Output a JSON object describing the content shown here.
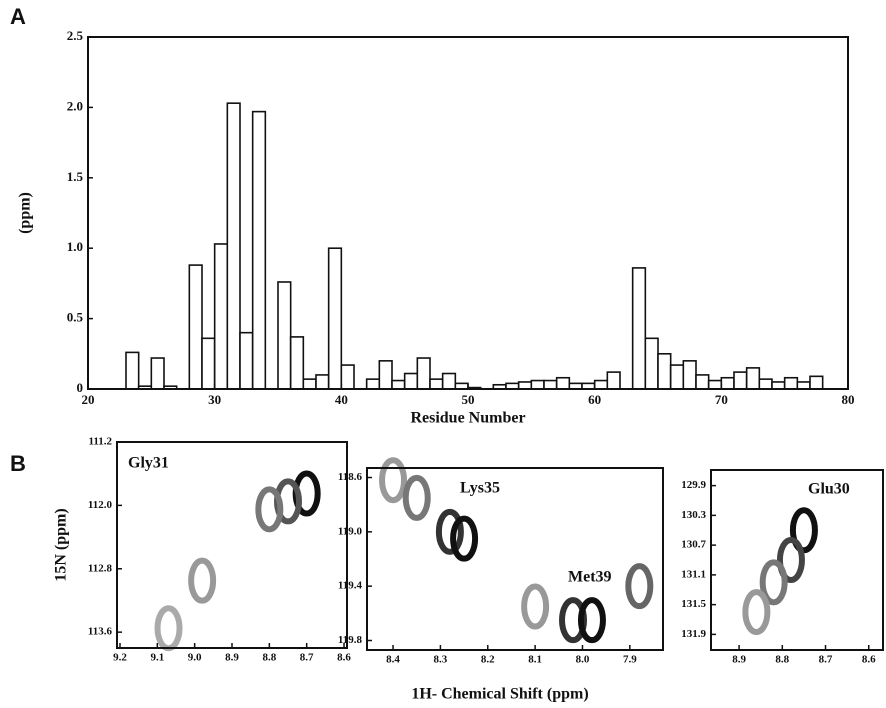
{
  "figure": {
    "panel_a": "A",
    "panel_b": "B",
    "x_label": "1H- Chemical Shift (ppm)",
    "y_label": "15N (ppm)"
  },
  "chart_data": [
    {
      "type": "histogram",
      "x_label": "Residue Number",
      "y_label": "(ppm)",
      "color": "#ffffff",
      "bins": [
        23,
        24,
        25,
        26,
        27,
        28,
        29,
        30,
        31,
        32,
        33,
        34,
        35,
        36,
        37,
        38,
        39,
        40,
        41,
        42,
        43,
        44,
        45,
        46,
        47,
        48,
        49,
        50,
        51,
        52,
        53,
        54,
        55,
        56,
        57,
        58,
        59,
        60,
        61,
        62,
        63,
        64,
        65,
        66,
        67,
        68,
        69,
        70,
        71,
        72,
        73,
        74,
        75,
        76,
        77,
        78
      ],
      "values": [
        0.26,
        0.02,
        0.22,
        0.02,
        0,
        0.88,
        0.36,
        1.03,
        2.03,
        0.4,
        1.97,
        0,
        0.76,
        0.37,
        0.07,
        0.1,
        1.0,
        0.17,
        0,
        0.07,
        0.2,
        0.06,
        0.11,
        0.22,
        0.07,
        0.11,
        0.04,
        0.01,
        0,
        0.03,
        0.04,
        0.05,
        0.06,
        0.06,
        0.08,
        0.04,
        0.04,
        0.06,
        0.12,
        0,
        0.86,
        0.36,
        0.25,
        0.17,
        0.2,
        0.1,
        0.06,
        0.08,
        0.12,
        0.15,
        0.07,
        0.05,
        0.08,
        0.05,
        0.09
      ],
      "xlim": [
        20,
        80
      ],
      "xticks": [
        20,
        30,
        40,
        50,
        60,
        70,
        80
      ],
      "ylim": [
        0,
        2.5
      ],
      "yticks": [
        0,
        0.5,
        {
          "value": 1,
          "label": "1.0"
        },
        1.5,
        {
          "value": 2,
          "label": "2.0"
        },
        2.5
      ]
    },
    {
      "type": "peaks",
      "labels": [
        "Gly31"
      ],
      "x": [
        8.7,
        8.75,
        8.8,
        8.98,
        9.07
      ],
      "y": [
        111.85,
        111.95,
        112.05,
        112.95,
        113.55
      ],
      "colors": [
        "#111111",
        "#555555",
        "#777777",
        "#999999",
        "#aaaaaa"
      ],
      "xlim": [
        9.208,
        8.592
      ],
      "xticks": [
        9.2,
        9.1,
        {
          "value": 9,
          "label": "9.0"
        },
        8.9,
        8.8,
        8.7,
        8.6
      ],
      "ylim": [
        111.2,
        113.8
      ],
      "yticks": [
        111.2,
        {
          "value": 112,
          "label": "112.0"
        },
        112.8,
        113.6
      ]
    },
    {
      "type": "peaks",
      "labels": [
        "Lys35",
        "Met39"
      ],
      "x": [
        8.4,
        8.35,
        8.28,
        8.25,
        8.1,
        8.02,
        7.98,
        7.88
      ],
      "y": [
        118.62,
        118.75,
        119.0,
        119.05,
        119.55,
        119.65,
        119.65,
        119.4
      ],
      "colors": [
        "#999999",
        "#777777",
        "#333333",
        "#111111",
        "#999999",
        "#333333",
        "#111111",
        "#666666"
      ],
      "xlim": [
        8.455,
        7.83
      ],
      "xticks": [
        8.4,
        8.3,
        8.2,
        8.1,
        {
          "value": 8,
          "label": "8.0"
        },
        7.9
      ],
      "ylim": [
        118.53,
        119.87
      ],
      "yticks": [
        118.6,
        {
          "value": 119,
          "label": "119.0"
        },
        119.4,
        119.8
      ]
    },
    {
      "type": "peaks",
      "labels": [
        "Glu30"
      ],
      "x": [
        8.75,
        8.78,
        8.82,
        8.86
      ],
      "y": [
        130.5,
        130.9,
        131.2,
        131.6
      ],
      "colors": [
        "#111111",
        "#444444",
        "#777777",
        "#999999"
      ],
      "xlim": [
        8.965,
        8.567
      ],
      "xticks": [
        8.9,
        8.8,
        8.7,
        8.6
      ],
      "ylim": [
        129.69,
        132.11
      ],
      "yticks": [
        129.9,
        130.3,
        130.7,
        131.1,
        131.5,
        131.9
      ]
    }
  ]
}
